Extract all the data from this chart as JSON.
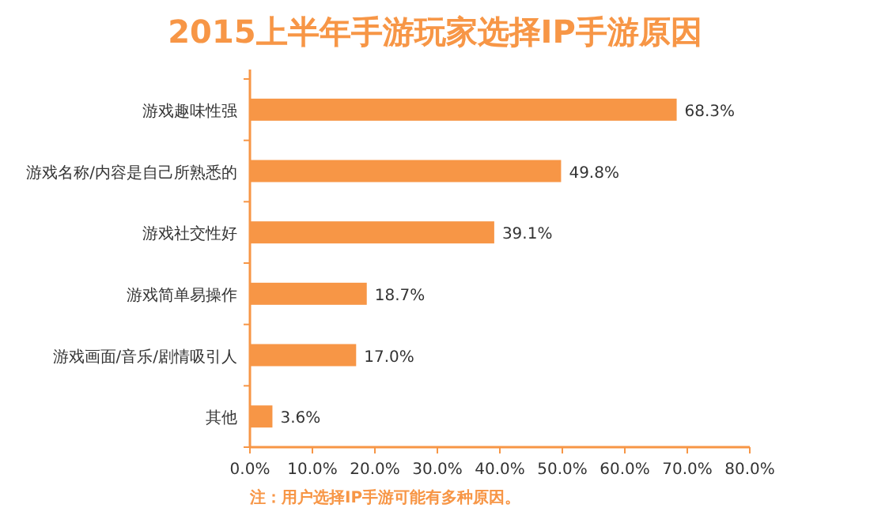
{
  "chart_data": {
    "type": "bar",
    "orientation": "horizontal",
    "title": "2015上半年手游玩家选择IP手游原因",
    "categories": [
      "游戏趣味性强",
      "游戏名称/内容是自己所熟悉的",
      "游戏社交性好",
      "游戏简单易操作",
      "游戏画面/音乐/剧情吸引人",
      "其他"
    ],
    "values": [
      68.3,
      49.8,
      39.1,
      18.7,
      17.0,
      3.6
    ],
    "value_labels": [
      "68.3%",
      "49.8%",
      "39.1%",
      "18.7%",
      "17.0%",
      "3.6%"
    ],
    "color": "#f79646",
    "xlim": [
      0,
      80
    ],
    "xticks": [
      {
        "value": 0,
        "label": "0.0%"
      },
      {
        "value": 10,
        "label": "10.0%"
      },
      {
        "value": 20,
        "label": "20.0%"
      },
      {
        "value": 30,
        "label": "30.0%"
      },
      {
        "value": 40,
        "label": "40.0%"
      },
      {
        "value": 50,
        "label": "50.0%"
      },
      {
        "value": 60,
        "label": "60.0%"
      },
      {
        "value": 70,
        "label": "70.0%"
      },
      {
        "value": 80,
        "label": "80.0%"
      }
    ],
    "grid": false,
    "annotations": [
      "注：用户选择IP手游可能有多种原因。"
    ]
  }
}
